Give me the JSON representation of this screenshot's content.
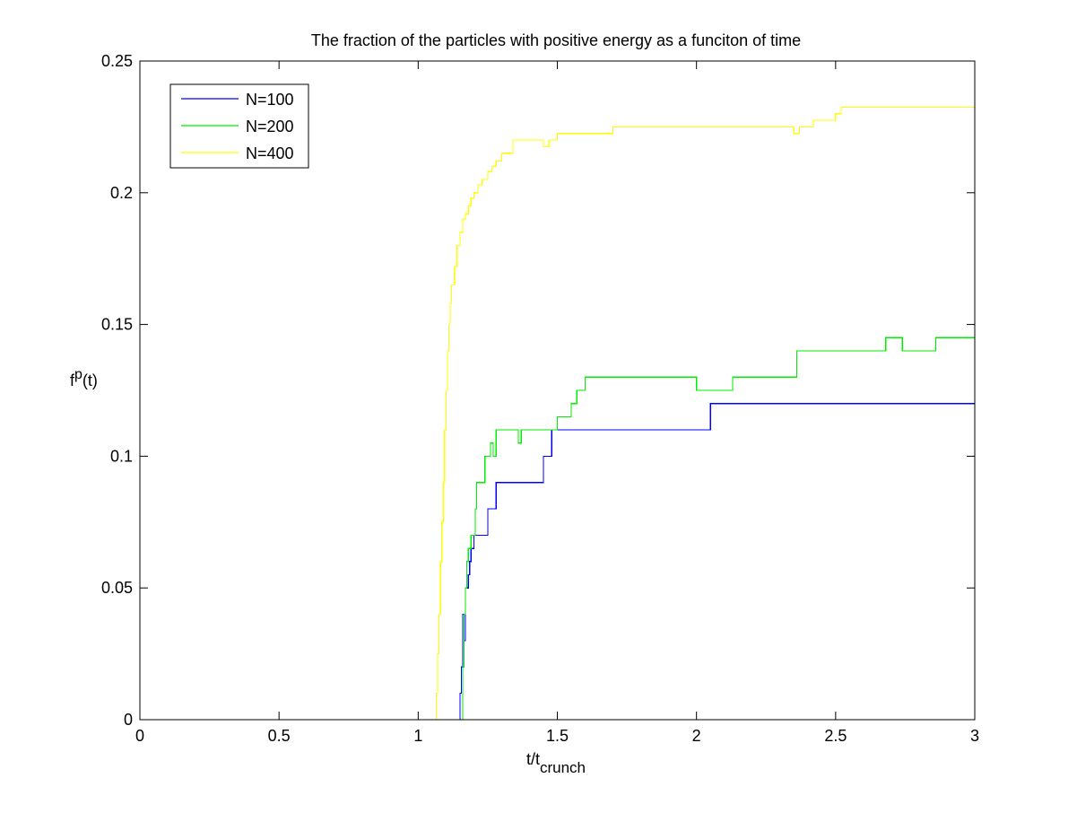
{
  "chart_data": {
    "type": "line",
    "title": "The fraction of the particles with positive energy as a funciton of time",
    "xlabel": {
      "base": "t/t",
      "sub": "crunch"
    },
    "ylabel": {
      "base": "f",
      "sup": "p",
      "tail": "(t)"
    },
    "xlim": [
      0,
      3
    ],
    "ylim": [
      0,
      0.25
    ],
    "xticks": [
      0,
      0.5,
      1,
      1.5,
      2,
      2.5,
      3
    ],
    "xtick_labels": [
      "0",
      "0.5",
      "1",
      "1.5",
      "2",
      "2.5",
      "3"
    ],
    "yticks": [
      0,
      0.05,
      0.1,
      0.15,
      0.2,
      0.25
    ],
    "ytick_labels": [
      "0",
      "0.05",
      "0.1",
      "0.15",
      "0.2",
      "0.25"
    ],
    "grid": false,
    "legend_position": "top-left",
    "series": [
      {
        "name": "N=100",
        "color": "#0000ff",
        "step": true,
        "points": [
          [
            0,
            0
          ],
          [
            1.15,
            0
          ],
          [
            1.15,
            0.01
          ],
          [
            1.155,
            0.02
          ],
          [
            1.16,
            0.04
          ],
          [
            1.165,
            0.03
          ],
          [
            1.17,
            0.05
          ],
          [
            1.18,
            0.055
          ],
          [
            1.185,
            0.06
          ],
          [
            1.19,
            0.065
          ],
          [
            1.2,
            0.07
          ],
          [
            1.25,
            0.08
          ],
          [
            1.28,
            0.09
          ],
          [
            1.45,
            0.1
          ],
          [
            1.48,
            0.11
          ],
          [
            2.05,
            0.12
          ],
          [
            3.0,
            0.12
          ]
        ]
      },
      {
        "name": "N=200",
        "color": "#00ee00",
        "step": true,
        "points": [
          [
            0,
            0
          ],
          [
            1.155,
            0
          ],
          [
            1.16,
            0.02
          ],
          [
            1.165,
            0.04
          ],
          [
            1.17,
            0.05
          ],
          [
            1.175,
            0.06
          ],
          [
            1.18,
            0.065
          ],
          [
            1.19,
            0.07
          ],
          [
            1.205,
            0.08
          ],
          [
            1.21,
            0.09
          ],
          [
            1.24,
            0.1
          ],
          [
            1.26,
            0.105
          ],
          [
            1.27,
            0.1
          ],
          [
            1.28,
            0.11
          ],
          [
            1.29,
            0.11
          ],
          [
            1.36,
            0.105
          ],
          [
            1.37,
            0.11
          ],
          [
            1.5,
            0.115
          ],
          [
            1.55,
            0.12
          ],
          [
            1.57,
            0.125
          ],
          [
            1.6,
            0.13
          ],
          [
            2.0,
            0.125
          ],
          [
            2.13,
            0.13
          ],
          [
            2.36,
            0.14
          ],
          [
            2.68,
            0.145
          ],
          [
            2.74,
            0.14
          ],
          [
            2.86,
            0.145
          ],
          [
            3.0,
            0.145
          ]
        ]
      },
      {
        "name": "N=400",
        "color": "#ffff00",
        "step": true,
        "points": [
          [
            0,
            0
          ],
          [
            1.06,
            0
          ],
          [
            1.065,
            0.01
          ],
          [
            1.07,
            0.025
          ],
          [
            1.075,
            0.04
          ],
          [
            1.08,
            0.06
          ],
          [
            1.085,
            0.075
          ],
          [
            1.09,
            0.09
          ],
          [
            1.095,
            0.11
          ],
          [
            1.1,
            0.125
          ],
          [
            1.105,
            0.14
          ],
          [
            1.11,
            0.15
          ],
          [
            1.115,
            0.158
          ],
          [
            1.12,
            0.165
          ],
          [
            1.13,
            0.172
          ],
          [
            1.14,
            0.18
          ],
          [
            1.15,
            0.185
          ],
          [
            1.16,
            0.19
          ],
          [
            1.17,
            0.192
          ],
          [
            1.18,
            0.195
          ],
          [
            1.19,
            0.198
          ],
          [
            1.2,
            0.2
          ],
          [
            1.215,
            0.203
          ],
          [
            1.23,
            0.205
          ],
          [
            1.25,
            0.208
          ],
          [
            1.265,
            0.21
          ],
          [
            1.28,
            0.212
          ],
          [
            1.3,
            0.215
          ],
          [
            1.34,
            0.22
          ],
          [
            1.45,
            0.2175
          ],
          [
            1.47,
            0.22
          ],
          [
            1.5,
            0.2225
          ],
          [
            1.7,
            0.225
          ],
          [
            2.35,
            0.2225
          ],
          [
            2.37,
            0.225
          ],
          [
            2.42,
            0.2275
          ],
          [
            2.5,
            0.23
          ],
          [
            2.52,
            0.2325
          ],
          [
            3.0,
            0.2325
          ]
        ]
      }
    ]
  }
}
